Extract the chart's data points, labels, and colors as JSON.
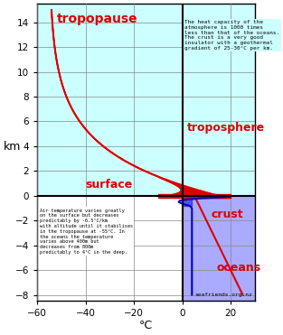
{
  "xlim": [
    -60,
    30
  ],
  "ylim": [
    -8.5,
    15.5
  ],
  "xlabel": "°C",
  "ylabel": "km",
  "bg_atm": "#ccffff",
  "bg_ocean": "#aaaaff",
  "grid_color": "#888888",
  "annotation_top": "The heat capacity of the\natmosphere is 1000 times\nless than that of the oceans.\nThe crust is a very good\ninsulator with a geothermal\ngradient of 25-30°C per km.",
  "annotation_bot": "Air temperature varies greatly\non the surface but decreases\npredictably by -6.5°C/km\nwith altitude until it stabilises\nin the tropopause at -55°C. In\nthe oceans the temperature\nvaries above 400m but\ndecreases from 800m\npredictably to 4°C in the deep.",
  "label_tropopause": "tropopause",
  "label_troposphere": "troposphere",
  "label_surface": "surface",
  "label_crust": "crust",
  "label_oceans": "oceans",
  "label_color": "#dd0000",
  "curve_color": "#dd0000",
  "ocean_curve_color": "#0000cc",
  "watermark": "seafriends.org.nz"
}
